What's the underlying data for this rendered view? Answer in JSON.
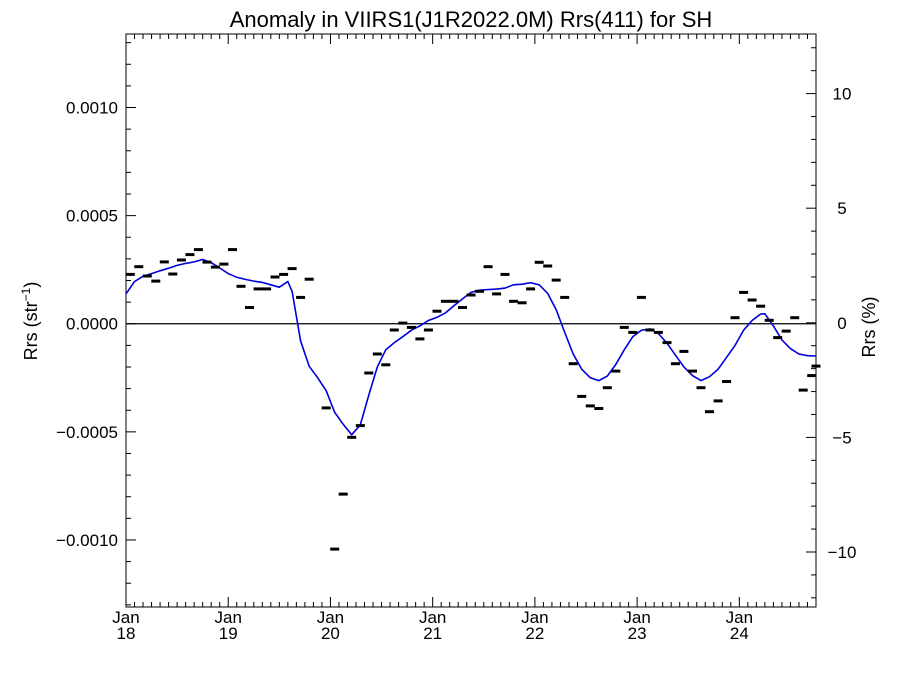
{
  "chart_data": {
    "type": "scatter",
    "title": "Anomaly in VIIRS1(J1R2022.0M) Rrs(411) for SH",
    "ylabel_left_main": "Rrs (str",
    "ylabel_left_sup": "−1",
    "ylabel_left_close": ")",
    "ylabel_right": "Rrs (%)",
    "x_unit": "decimal year",
    "xlim": [
      2018.0,
      2024.75
    ],
    "ylim_left": [
      -0.00131,
      0.00134
    ],
    "ylim_right": [
      -12.4,
      12.6
    ],
    "x_ticks": [
      {
        "month": "Jan",
        "year": "18",
        "x": 2018.0
      },
      {
        "month": "Jan",
        "year": "19",
        "x": 2019.0
      },
      {
        "month": "Jan",
        "year": "20",
        "x": 2020.0
      },
      {
        "month": "Jan",
        "year": "21",
        "x": 2021.0
      },
      {
        "month": "Jan",
        "year": "22",
        "x": 2022.0
      },
      {
        "month": "Jan",
        "year": "23",
        "x": 2023.0
      },
      {
        "month": "Jan",
        "year": "24",
        "x": 2024.0
      }
    ],
    "y_ticks_left": [
      {
        "label": "0.0010",
        "value": 0.001
      },
      {
        "label": "0.0005",
        "value": 0.0005
      },
      {
        "label": "0.0000",
        "value": 0.0
      },
      {
        "label": "−0.0005",
        "value": -0.0005
      },
      {
        "label": "−0.0010",
        "value": -0.001
      }
    ],
    "y_ticks_right": [
      {
        "label": "10",
        "value": 10
      },
      {
        "label": "5",
        "value": 5
      },
      {
        "label": "0",
        "value": 0
      },
      {
        "label": "−5",
        "value": -5
      },
      {
        "label": "−10",
        "value": -10
      }
    ],
    "zero_line": true,
    "series": [
      {
        "kind": "monthly_anomaly",
        "marker": "dash",
        "color": "#000000",
        "points": [
          {
            "x": 2018.042,
            "y": 0.000228
          },
          {
            "x": 2018.125,
            "y": 0.000264
          },
          {
            "x": 2018.208,
            "y": 0.000221
          },
          {
            "x": 2018.292,
            "y": 0.000197
          },
          {
            "x": 2018.375,
            "y": 0.000286
          },
          {
            "x": 2018.458,
            "y": 0.00023
          },
          {
            "x": 2018.542,
            "y": 0.000295
          },
          {
            "x": 2018.625,
            "y": 0.00032
          },
          {
            "x": 2018.708,
            "y": 0.000343
          },
          {
            "x": 2018.792,
            "y": 0.000285
          },
          {
            "x": 2018.875,
            "y": 0.000262
          },
          {
            "x": 2018.958,
            "y": 0.000276
          },
          {
            "x": 2019.042,
            "y": 0.000343
          },
          {
            "x": 2019.125,
            "y": 0.000173
          },
          {
            "x": 2019.208,
            "y": 7.5e-05
          },
          {
            "x": 2019.292,
            "y": 0.000161
          },
          {
            "x": 2019.375,
            "y": 0.000161
          },
          {
            "x": 2019.458,
            "y": 0.000216
          },
          {
            "x": 2019.542,
            "y": 0.000228
          },
          {
            "x": 2019.625,
            "y": 0.000255
          },
          {
            "x": 2019.708,
            "y": 0.000122
          },
          {
            "x": 2019.792,
            "y": 0.000206
          },
          {
            "x": 2019.958,
            "y": -0.000389
          },
          {
            "x": 2020.042,
            "y": -0.001042
          },
          {
            "x": 2020.125,
            "y": -0.000788
          },
          {
            "x": 2020.208,
            "y": -0.000525
          },
          {
            "x": 2020.292,
            "y": -0.000471
          },
          {
            "x": 2020.375,
            "y": -0.000228
          },
          {
            "x": 2020.458,
            "y": -0.00014
          },
          {
            "x": 2020.542,
            "y": -0.00019
          },
          {
            "x": 2020.625,
            "y": -2.9e-05
          },
          {
            "x": 2020.708,
            "y": 3e-06
          },
          {
            "x": 2020.792,
            "y": -1.7e-05
          },
          {
            "x": 2020.875,
            "y": -7e-05
          },
          {
            "x": 2020.958,
            "y": -2.9e-05
          },
          {
            "x": 2021.042,
            "y": 5.8e-05
          },
          {
            "x": 2021.125,
            "y": 0.000104
          },
          {
            "x": 2021.208,
            "y": 0.000104
          },
          {
            "x": 2021.292,
            "y": 7.5e-05
          },
          {
            "x": 2021.375,
            "y": 0.000133
          },
          {
            "x": 2021.458,
            "y": 0.00015
          },
          {
            "x": 2021.542,
            "y": 0.000264
          },
          {
            "x": 2021.625,
            "y": 0.000138
          },
          {
            "x": 2021.708,
            "y": 0.000228
          },
          {
            "x": 2021.792,
            "y": 0.000104
          },
          {
            "x": 2021.875,
            "y": 9.7e-05
          },
          {
            "x": 2021.958,
            "y": 0.000161
          },
          {
            "x": 2022.042,
            "y": 0.000284
          },
          {
            "x": 2022.125,
            "y": 0.000267
          },
          {
            "x": 2022.208,
            "y": 0.000202
          },
          {
            "x": 2022.292,
            "y": 0.000122
          },
          {
            "x": 2022.375,
            "y": -0.000185
          },
          {
            "x": 2022.458,
            "y": -0.000336
          },
          {
            "x": 2022.542,
            "y": -0.00038
          },
          {
            "x": 2022.625,
            "y": -0.000392
          },
          {
            "x": 2022.708,
            "y": -0.000296
          },
          {
            "x": 2022.792,
            "y": -0.000219
          },
          {
            "x": 2022.875,
            "y": -1.7e-05
          },
          {
            "x": 2022.958,
            "y": -4e-05
          },
          {
            "x": 2023.042,
            "y": 0.000122
          },
          {
            "x": 2023.125,
            "y": -2.9e-05
          },
          {
            "x": 2023.208,
            "y": -4e-05
          },
          {
            "x": 2023.292,
            "y": -8.7e-05
          },
          {
            "x": 2023.375,
            "y": -0.000185
          },
          {
            "x": 2023.458,
            "y": -0.000128
          },
          {
            "x": 2023.542,
            "y": -0.000219
          },
          {
            "x": 2023.625,
            "y": -0.000296
          },
          {
            "x": 2023.708,
            "y": -0.000407
          },
          {
            "x": 2023.792,
            "y": -0.000357
          },
          {
            "x": 2023.875,
            "y": -0.000267
          },
          {
            "x": 2023.958,
            "y": 2.8e-05
          },
          {
            "x": 2024.042,
            "y": 0.000145
          },
          {
            "x": 2024.125,
            "y": 0.00011
          },
          {
            "x": 2024.208,
            "y": 8.1e-05
          },
          {
            "x": 2024.292,
            "y": 1.6e-05
          },
          {
            "x": 2024.375,
            "y": -6.4e-05
          },
          {
            "x": 2024.458,
            "y": -3.4e-05
          },
          {
            "x": 2024.542,
            "y": 2.8e-05
          },
          {
            "x": 2024.625,
            "y": -0.000307
          },
          {
            "x": 2024.708,
            "y": -0.00024
          },
          {
            "x": 2024.75,
            "y": -0.000196
          }
        ]
      },
      {
        "kind": "smoothed",
        "line": true,
        "color": "#0000dd",
        "points": [
          {
            "x": 2018.0,
            "y": 0.000138
          },
          {
            "x": 2018.083,
            "y": 0.000195
          },
          {
            "x": 2018.167,
            "y": 0.00022
          },
          {
            "x": 2018.25,
            "y": 0.000232
          },
          {
            "x": 2018.333,
            "y": 0.000245
          },
          {
            "x": 2018.417,
            "y": 0.000257
          },
          {
            "x": 2018.5,
            "y": 0.00027
          },
          {
            "x": 2018.583,
            "y": 0.000279
          },
          {
            "x": 2018.667,
            "y": 0.000286
          },
          {
            "x": 2018.75,
            "y": 0.000297
          },
          {
            "x": 2018.833,
            "y": 0.000283
          },
          {
            "x": 2018.917,
            "y": 0.000258
          },
          {
            "x": 2019.0,
            "y": 0.000232
          },
          {
            "x": 2019.083,
            "y": 0.000215
          },
          {
            "x": 2019.167,
            "y": 0.000205
          },
          {
            "x": 2019.25,
            "y": 0.000197
          },
          {
            "x": 2019.333,
            "y": 0.000191
          },
          {
            "x": 2019.417,
            "y": 0.00018
          },
          {
            "x": 2019.5,
            "y": 0.000169
          },
          {
            "x": 2019.583,
            "y": 0.000195
          },
          {
            "x": 2019.625,
            "y": 0.00015
          },
          {
            "x": 2019.708,
            "y": -8e-05
          },
          {
            "x": 2019.792,
            "y": -0.000197
          },
          {
            "x": 2019.875,
            "y": -0.00025
          },
          {
            "x": 2019.958,
            "y": -0.00031
          },
          {
            "x": 2020.042,
            "y": -0.00041
          },
          {
            "x": 2020.125,
            "y": -0.000465
          },
          {
            "x": 2020.208,
            "y": -0.000513
          },
          {
            "x": 2020.292,
            "y": -0.000468
          },
          {
            "x": 2020.375,
            "y": -0.00033
          },
          {
            "x": 2020.458,
            "y": -0.0002
          },
          {
            "x": 2020.542,
            "y": -0.00012
          },
          {
            "x": 2020.625,
            "y": -8.7e-05
          },
          {
            "x": 2020.708,
            "y": -6e-05
          },
          {
            "x": 2020.792,
            "y": -3e-05
          },
          {
            "x": 2020.875,
            "y": -1e-05
          },
          {
            "x": 2020.958,
            "y": 1.5e-05
          },
          {
            "x": 2021.042,
            "y": 3e-05
          },
          {
            "x": 2021.125,
            "y": 5e-05
          },
          {
            "x": 2021.208,
            "y": 8.3e-05
          },
          {
            "x": 2021.292,
            "y": 0.000115
          },
          {
            "x": 2021.375,
            "y": 0.000145
          },
          {
            "x": 2021.458,
            "y": 0.000155
          },
          {
            "x": 2021.542,
            "y": 0.000158
          },
          {
            "x": 2021.625,
            "y": 0.00016
          },
          {
            "x": 2021.708,
            "y": 0.000165
          },
          {
            "x": 2021.792,
            "y": 0.00018
          },
          {
            "x": 2021.875,
            "y": 0.000183
          },
          {
            "x": 2021.958,
            "y": 0.00019
          },
          {
            "x": 2022.042,
            "y": 0.00018
          },
          {
            "x": 2022.125,
            "y": 0.00014
          },
          {
            "x": 2022.208,
            "y": 6.5e-05
          },
          {
            "x": 2022.292,
            "y": -4e-05
          },
          {
            "x": 2022.375,
            "y": -0.00014
          },
          {
            "x": 2022.458,
            "y": -0.00021
          },
          {
            "x": 2022.542,
            "y": -0.00025
          },
          {
            "x": 2022.625,
            "y": -0.000263
          },
          {
            "x": 2022.708,
            "y": -0.000242
          },
          {
            "x": 2022.792,
            "y": -0.000188
          },
          {
            "x": 2022.875,
            "y": -0.00012
          },
          {
            "x": 2022.958,
            "y": -6e-05
          },
          {
            "x": 2023.042,
            "y": -3e-05
          },
          {
            "x": 2023.125,
            "y": -2.4e-05
          },
          {
            "x": 2023.208,
            "y": -4.5e-05
          },
          {
            "x": 2023.292,
            "y": -9e-05
          },
          {
            "x": 2023.375,
            "y": -0.000145
          },
          {
            "x": 2023.458,
            "y": -0.0002
          },
          {
            "x": 2023.542,
            "y": -0.00024
          },
          {
            "x": 2023.625,
            "y": -0.000263
          },
          {
            "x": 2023.708,
            "y": -0.000245
          },
          {
            "x": 2023.792,
            "y": -0.00021
          },
          {
            "x": 2023.875,
            "y": -0.000155
          },
          {
            "x": 2023.958,
            "y": -0.0001
          },
          {
            "x": 2024.042,
            "y": -3e-05
          },
          {
            "x": 2024.125,
            "y": 1.5e-05
          },
          {
            "x": 2024.208,
            "y": 4.5e-05
          },
          {
            "x": 2024.25,
            "y": 4.6e-05
          },
          {
            "x": 2024.333,
            "y": -1e-05
          },
          {
            "x": 2024.417,
            "y": -7.5e-05
          },
          {
            "x": 2024.5,
            "y": -0.000115
          },
          {
            "x": 2024.583,
            "y": -0.00014
          },
          {
            "x": 2024.667,
            "y": -0.000148
          },
          {
            "x": 2024.75,
            "y": -0.000149
          }
        ]
      }
    ]
  }
}
